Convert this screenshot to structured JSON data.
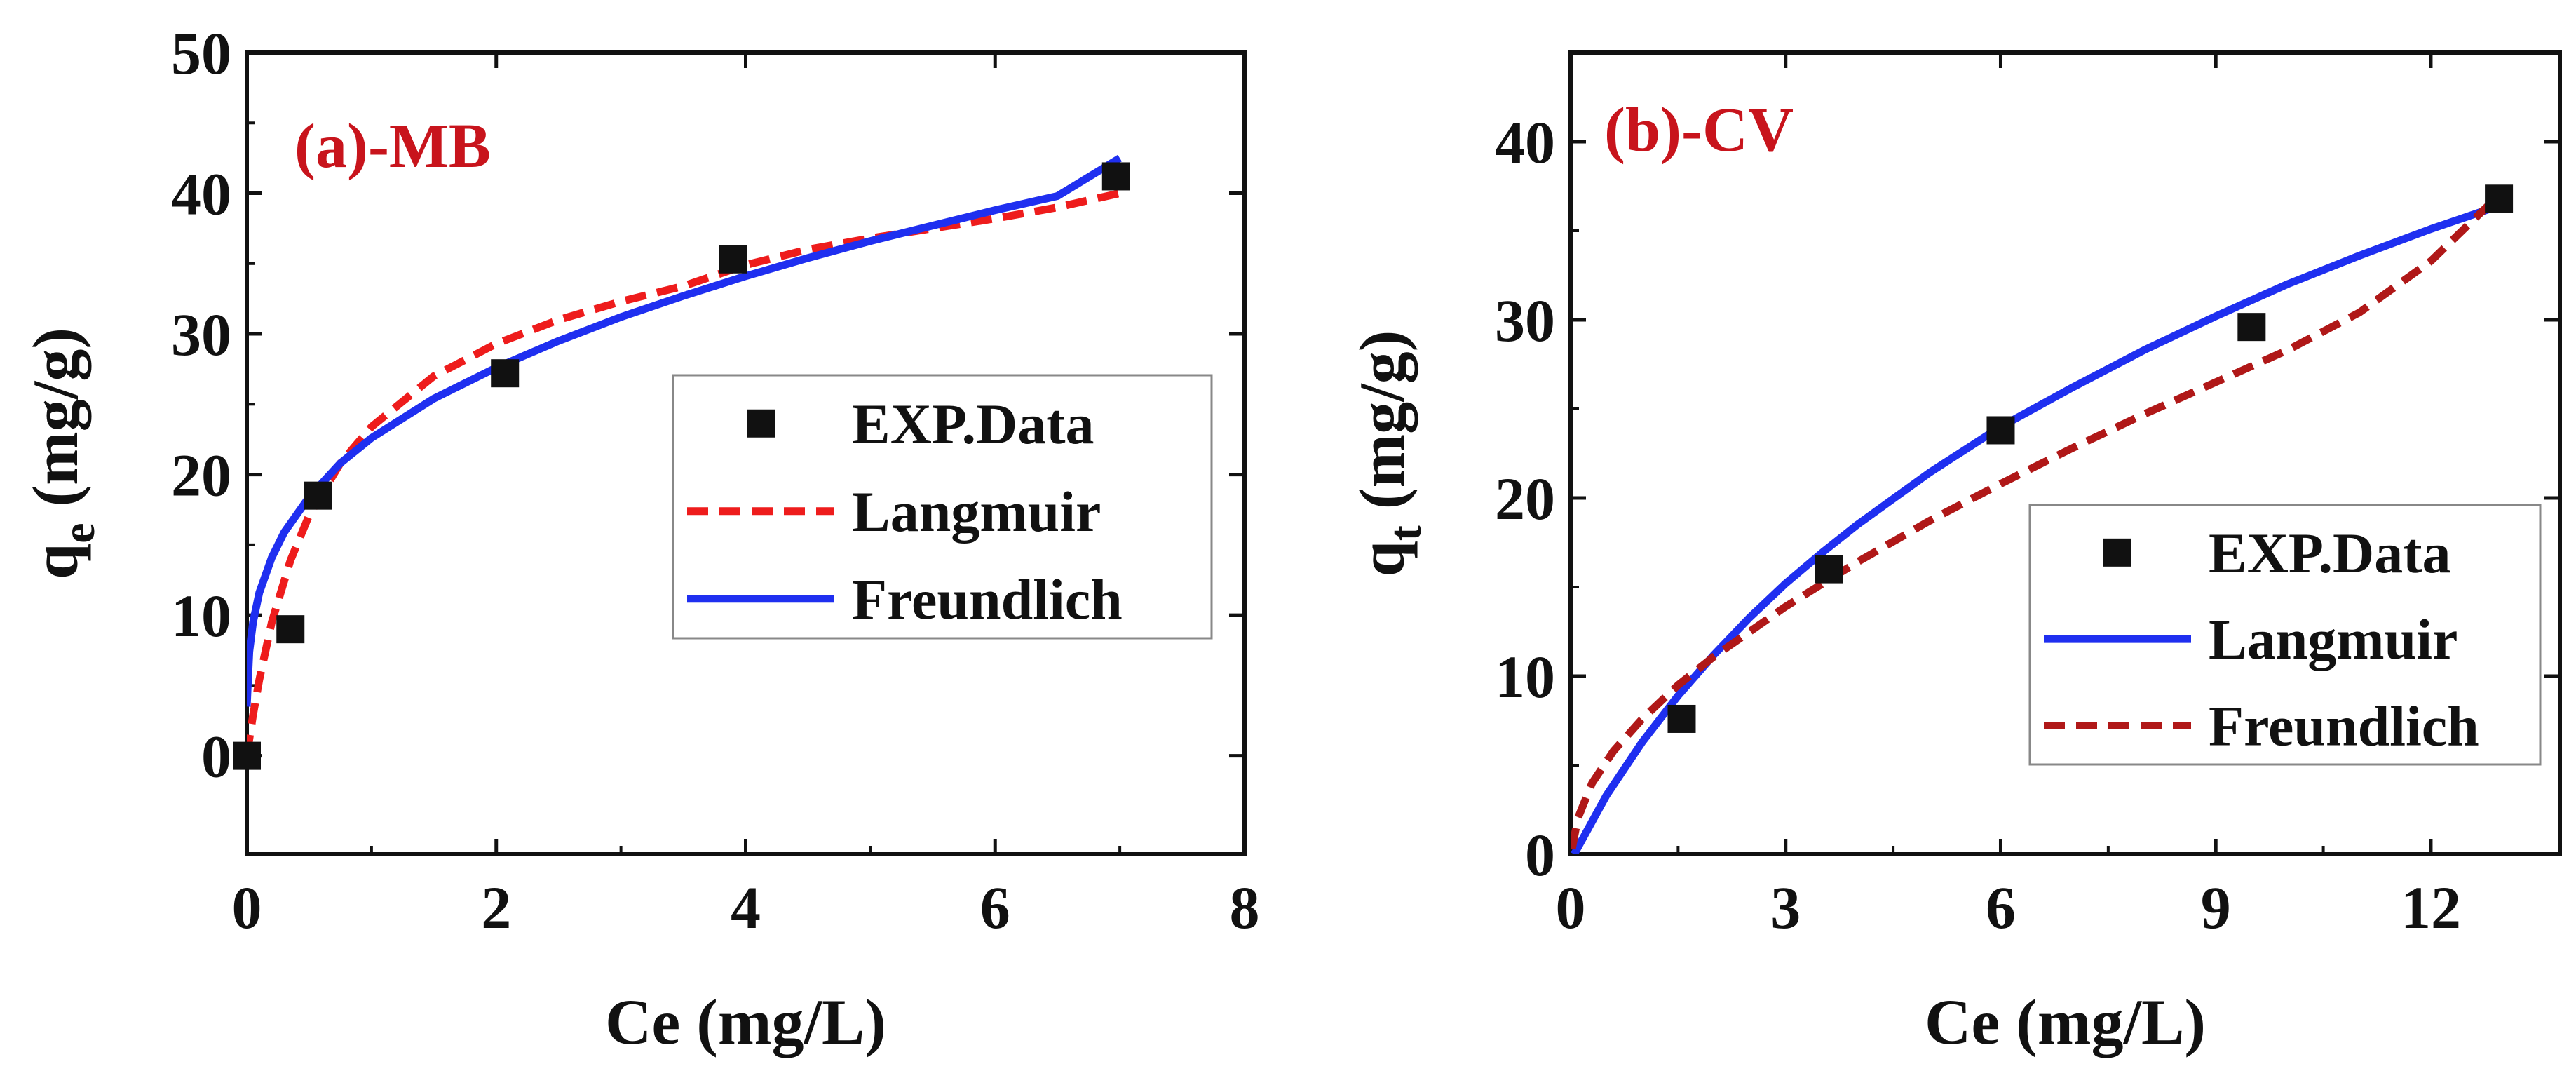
{
  "chart_data": [
    {
      "type": "scatter",
      "panel_label": "(a)-MB",
      "xlabel": "Ce (mg/L)",
      "ylabel_base": "q",
      "ylabel_sub": "e",
      "ylabel_unit": " (mg/g)",
      "xlim": [
        0,
        8
      ],
      "ylim": [
        -7,
        50
      ],
      "xticks": [
        0,
        2,
        4,
        6,
        8
      ],
      "yticks": [
        0,
        10,
        20,
        30,
        40,
        50
      ],
      "legend_position": "center-right",
      "series": [
        {
          "name": "EXP.Data",
          "kind": "scatter",
          "color": "#111111",
          "points": [
            [
              0,
              0
            ],
            [
              0.35,
              9
            ],
            [
              0.57,
              18.5
            ],
            [
              2.07,
              27.2
            ],
            [
              3.9,
              35.3
            ],
            [
              6.97,
              41.2
            ]
          ]
        },
        {
          "name": "Langmuir",
          "kind": "line",
          "style": "dashed",
          "color": "#ee1c1c",
          "points": [
            [
              0,
              0
            ],
            [
              0.05,
              2.9
            ],
            [
              0.1,
              5.4
            ],
            [
              0.2,
              9.5
            ],
            [
              0.35,
              13.9
            ],
            [
              0.5,
              17.1
            ],
            [
              0.75,
              20.8
            ],
            [
              1,
              23.4
            ],
            [
              1.5,
              27
            ],
            [
              2,
              29.3
            ],
            [
              2.5,
              31
            ],
            [
              3,
              32.3
            ],
            [
              3.5,
              33.4
            ],
            [
              4,
              34.9
            ],
            [
              4.5,
              36
            ],
            [
              5,
              36.8
            ],
            [
              5.5,
              37.5
            ],
            [
              6,
              38.2
            ],
            [
              6.5,
              39
            ],
            [
              7,
              40
            ]
          ]
        },
        {
          "name": "Freundlich",
          "kind": "line",
          "style": "solid",
          "color": "#1f2ff0",
          "points": [
            [
              0,
              3.5
            ],
            [
              0.02,
              7.4
            ],
            [
              0.05,
              9.5
            ],
            [
              0.1,
              11.6
            ],
            [
              0.2,
              14.1
            ],
            [
              0.3,
              15.9
            ],
            [
              0.5,
              18.4
            ],
            [
              0.75,
              20.8
            ],
            [
              1,
              22.6
            ],
            [
              1.5,
              25.4
            ],
            [
              2,
              27.6
            ],
            [
              2.5,
              29.5
            ],
            [
              3,
              31.2
            ],
            [
              3.5,
              32.7
            ],
            [
              4,
              34.1
            ],
            [
              4.5,
              35.4
            ],
            [
              5,
              36.6
            ],
            [
              5.5,
              37.7
            ],
            [
              6,
              38.8
            ],
            [
              6.5,
              39.8
            ],
            [
              7,
              42.5
            ]
          ]
        }
      ]
    },
    {
      "type": "scatter",
      "panel_label": "(b)-CV",
      "xlabel": "Ce (mg/L)",
      "ylabel_base": "q",
      "ylabel_sub": "t",
      "ylabel_unit": " (mg/g)",
      "xlim": [
        0,
        13.8
      ],
      "ylim": [
        0,
        45
      ],
      "xticks": [
        0,
        3,
        6,
        9,
        12
      ],
      "yticks": [
        0,
        10,
        20,
        30,
        40
      ],
      "legend_position": "lower-right",
      "series": [
        {
          "name": "EXP.Data",
          "kind": "scatter",
          "color": "#111111",
          "points": [
            [
              1.55,
              7.6
            ],
            [
              3.6,
              16
            ],
            [
              6,
              23.8
            ],
            [
              9.5,
              29.6
            ],
            [
              12.95,
              36.8
            ]
          ]
        },
        {
          "name": "Langmuir",
          "kind": "line",
          "style": "solid",
          "color": "#1f2ff0",
          "points": [
            [
              0.05,
              0
            ],
            [
              0.5,
              3.3
            ],
            [
              1,
              6.3
            ],
            [
              1.5,
              8.9
            ],
            [
              2,
              11.2
            ],
            [
              2.5,
              13.3
            ],
            [
              3,
              15.2
            ],
            [
              3.5,
              16.9
            ],
            [
              4,
              18.5
            ],
            [
              5,
              21.4
            ],
            [
              6,
              24
            ],
            [
              7,
              26.2
            ],
            [
              8,
              28.3
            ],
            [
              9,
              30.2
            ],
            [
              10,
              32
            ],
            [
              11,
              33.6
            ],
            [
              12,
              35.1
            ],
            [
              12.95,
              36.4
            ]
          ]
        },
        {
          "name": "Freundlich",
          "kind": "line",
          "style": "dashed",
          "color": "#b01818",
          "points": [
            [
              0.02,
              0.3
            ],
            [
              0.1,
              2
            ],
            [
              0.3,
              4
            ],
            [
              0.6,
              5.8
            ],
            [
              1,
              7.6
            ],
            [
              1.5,
              9.5
            ],
            [
              2,
              11.1
            ],
            [
              3,
              13.9
            ],
            [
              4,
              16.4
            ],
            [
              5,
              18.7
            ],
            [
              6,
              20.8
            ],
            [
              7,
              22.8
            ],
            [
              8,
              24.7
            ],
            [
              9,
              26.5
            ],
            [
              10,
              28.3
            ],
            [
              11,
              30.4
            ],
            [
              12,
              33.3
            ],
            [
              12.95,
              37
            ]
          ]
        }
      ]
    }
  ]
}
